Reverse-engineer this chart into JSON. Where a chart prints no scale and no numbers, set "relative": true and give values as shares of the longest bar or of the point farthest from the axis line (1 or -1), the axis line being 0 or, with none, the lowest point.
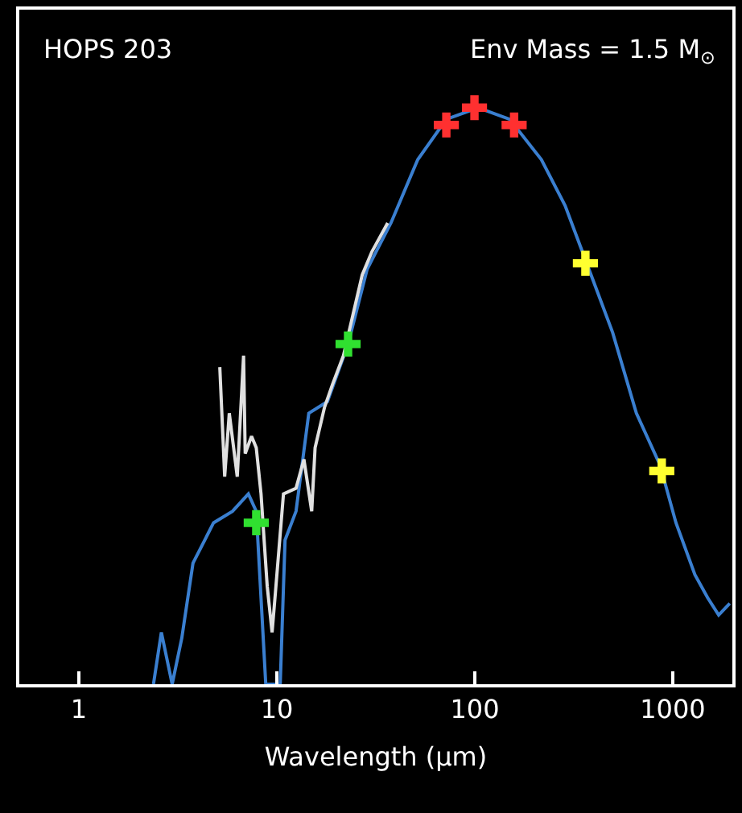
{
  "chart_data": {
    "type": "line",
    "relative": true,
    "xlabel": "Wavelength (μm)",
    "log": "x",
    "xlim": [
      0.5,
      2000
    ],
    "xticks": [
      1,
      10,
      100,
      1000
    ],
    "tick_labels": "x",
    "grid": false,
    "annotations": [
      "HOPS 203",
      "Env Mass = 1.5 M$_{⊙}$"
    ],
    "series": [
      {
        "color": "#3a7fd0",
        "x": [
          2.38,
          2.61,
          2.96,
          3.31,
          3.77,
          4.79,
          5.97,
          7.18,
          7.87,
          8.79,
          10.4,
          11.0,
          12.5,
          14.5,
          18.0,
          22.9,
          28.6,
          37.7,
          51.5,
          71.8,
          104,
          150,
          217,
          286,
          377,
          497,
          655,
          863,
          1038,
          1294,
          1500,
          1706,
          1941
        ],
        "values": [
          0,
          0.09,
          0,
          0.08,
          0.21,
          0.28,
          0.3,
          0.33,
          0.3,
          0,
          0,
          0.25,
          0.3,
          0.47,
          0.49,
          0.59,
          0.72,
          0.8,
          0.91,
          0.98,
          1.0,
          0.98,
          0.91,
          0.83,
          0.72,
          0.61,
          0.47,
          0.38,
          0.28,
          0.19,
          0.15,
          0.12,
          0.14
        ]
      },
      {
        "color": "#e0e0e0",
        "x": [
          5.15,
          5.45,
          5.75,
          6.31,
          6.79,
          6.92,
          7.45,
          7.87,
          8.32,
          8.94,
          9.46,
          9.84,
          10.8,
          12.5,
          13.7,
          15.0,
          15.6,
          17.4,
          19.1,
          21.7,
          27.0,
          30.2,
          36.3
        ],
        "values": [
          0.55,
          0.36,
          0.47,
          0.36,
          0.57,
          0.4,
          0.43,
          0.41,
          0.33,
          0.17,
          0.09,
          0.16,
          0.33,
          0.34,
          0.39,
          0.3,
          0.41,
          0.48,
          0.52,
          0.57,
          0.71,
          0.75,
          0.8
        ]
      },
      {
        "type": "scatter",
        "marker": "cross",
        "color": "#30e030",
        "x": [
          7.87,
          22.9
        ],
        "values": [
          0.28,
          0.59
        ]
      },
      {
        "type": "scatter",
        "marker": "cross",
        "color": "#ff3030",
        "x": [
          71.8,
          99.6,
          158
        ],
        "values": [
          0.97,
          1.0,
          0.97
        ]
      },
      {
        "type": "scatter",
        "marker": "cross",
        "color": "#ffff30",
        "x": [
          362,
          880
        ],
        "values": [
          0.73,
          0.37
        ]
      }
    ]
  }
}
